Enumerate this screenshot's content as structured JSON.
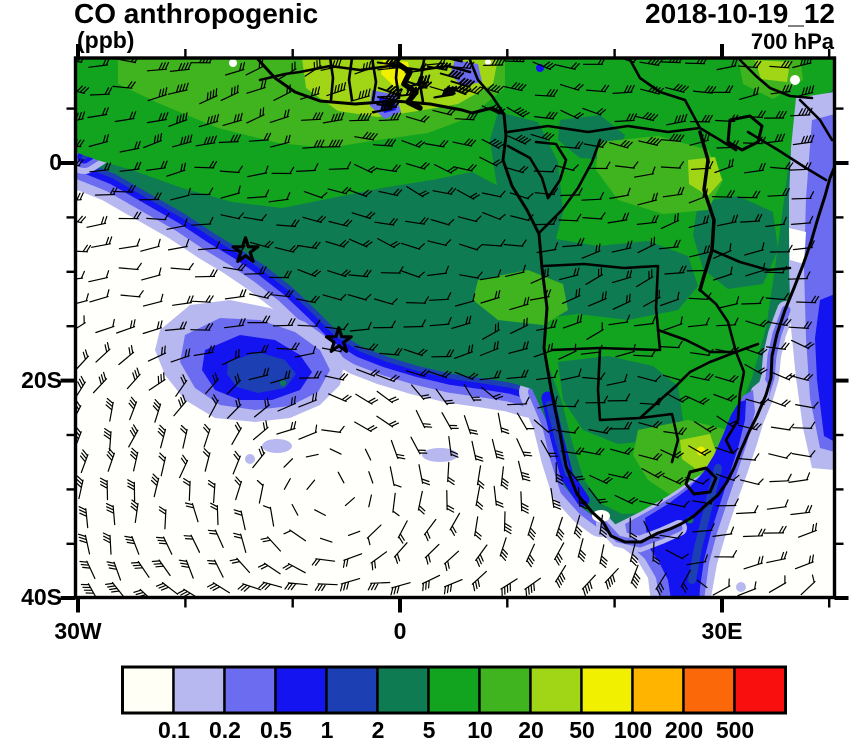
{
  "header": {
    "title": "CO anthropogenic",
    "units_label": "(ppb)",
    "datetime": "2018-10-19_12",
    "level": "700 hPa"
  },
  "axes": {
    "lat_ticks": [
      "0",
      "20S",
      "40S"
    ],
    "lon_ticks": [
      "30W",
      "0",
      "30E"
    ]
  },
  "colorbar": {
    "labels": [
      "0.1",
      "0.2",
      "0.5",
      "1",
      "2",
      "5",
      "10",
      "20",
      "50",
      "100",
      "200",
      "500"
    ],
    "colors": [
      "#FFFFF6",
      "#B8B8F0",
      "#6C6CF0",
      "#1414F0",
      "#1C40B4",
      "#0F7B52",
      "#12A31F",
      "#3FB41E",
      "#A0D616",
      "#F0F000",
      "#FFB400",
      "#FB680A",
      "#FA0F0F"
    ]
  },
  "chart_data": {
    "type": "heatmap",
    "subtype": "filled contour map with wind barbs",
    "title": "CO anthropogenic",
    "units": "ppb",
    "valid_time": "2018-10-19_12",
    "pressure_level": "700 hPa",
    "region": "southern Africa and South Atlantic",
    "lon_range_deg": [
      -30.5,
      40.5
    ],
    "lat_range_deg": [
      -40,
      10
    ],
    "lon_tick_labels": [
      "30W",
      "0",
      "30E"
    ],
    "lat_tick_labels": [
      "0",
      "20S",
      "40S"
    ],
    "contour_levels_ppb": [
      0.1,
      0.2,
      0.5,
      1,
      2,
      5,
      10,
      20,
      50,
      100,
      200,
      500
    ],
    "palette": [
      "#FFFFF6",
      "#B8B8F0",
      "#6C6CF0",
      "#1414F0",
      "#1C40B4",
      "#0F7B52",
      "#12A31F",
      "#3FB41E",
      "#A0D616",
      "#F0F000",
      "#FFB400",
      "#FB680A",
      "#FA0F0F"
    ],
    "legend_position": "bottom",
    "grid": false,
    "markers": [
      {
        "shape": "star",
        "lon": -14.4,
        "lat": -8.1
      },
      {
        "shape": "star",
        "lon": -5.7,
        "lat": -16.4
      }
    ],
    "overlays": [
      "wind barbs",
      "coastlines",
      "country borders"
    ],
    "field_summary": [
      {
        "area": "West African coast (Ghana-Nigeria)",
        "approx_ppb": "20-100"
      },
      {
        "area": "Nigeria hotspot",
        "approx_ppb": "50-100"
      },
      {
        "area": "Congo basin and central Africa",
        "approx_ppb": "5-20"
      },
      {
        "area": "Gulf of Guinea / tropical Atlantic outflow plume",
        "approx_ppb": "2-10"
      },
      {
        "area": "diagonal plume edge fringe over Atlantic",
        "approx_ppb": "0.1-2"
      },
      {
        "area": "offshore SE Atlantic blob (about 20W-5W, 15-25S)",
        "approx_ppb": "0.2-2"
      },
      {
        "area": "southwest South Atlantic",
        "approx_ppb": "<0.1"
      },
      {
        "area": "eastern South Africa",
        "approx_ppb": "10-100"
      },
      {
        "area": "plume off southeast coast of South Africa",
        "approx_ppb": "0.5-5"
      },
      {
        "area": "western Indian Ocean coastal band",
        "approx_ppb": "0.1-1"
      }
    ]
  }
}
